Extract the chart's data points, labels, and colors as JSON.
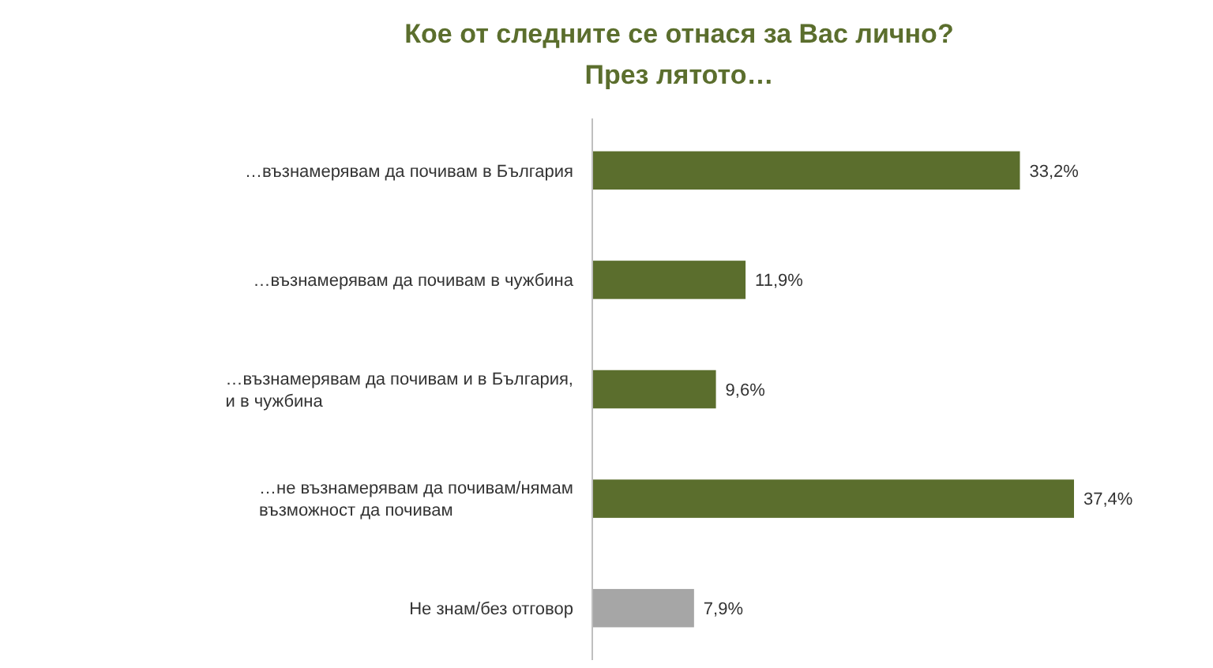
{
  "chart_data": {
    "type": "bar",
    "orientation": "horizontal",
    "title": "Кое от следните се отнася за Вас лично?",
    "subtitle": "През лятото…",
    "categories": [
      "…възнамерявам да почивам в България",
      "…възнамерявам да почивам в чужбина",
      "…възнамерявам да почивам и в България, и в чужбина",
      "…не възнамерявам да почивам/нямам възможност да почивам",
      "Не знам/без отговор"
    ],
    "values": [
      33.2,
      11.9,
      9.6,
      37.4,
      7.9
    ],
    "colors": [
      "#5b6e2d",
      "#5b6e2d",
      "#5b6e2d",
      "#5b6e2d",
      "#a6a6a6"
    ],
    "value_labels": [
      "33,2%",
      "11,9%",
      "9,6%",
      "37,4%",
      "7,9%"
    ]
  }
}
